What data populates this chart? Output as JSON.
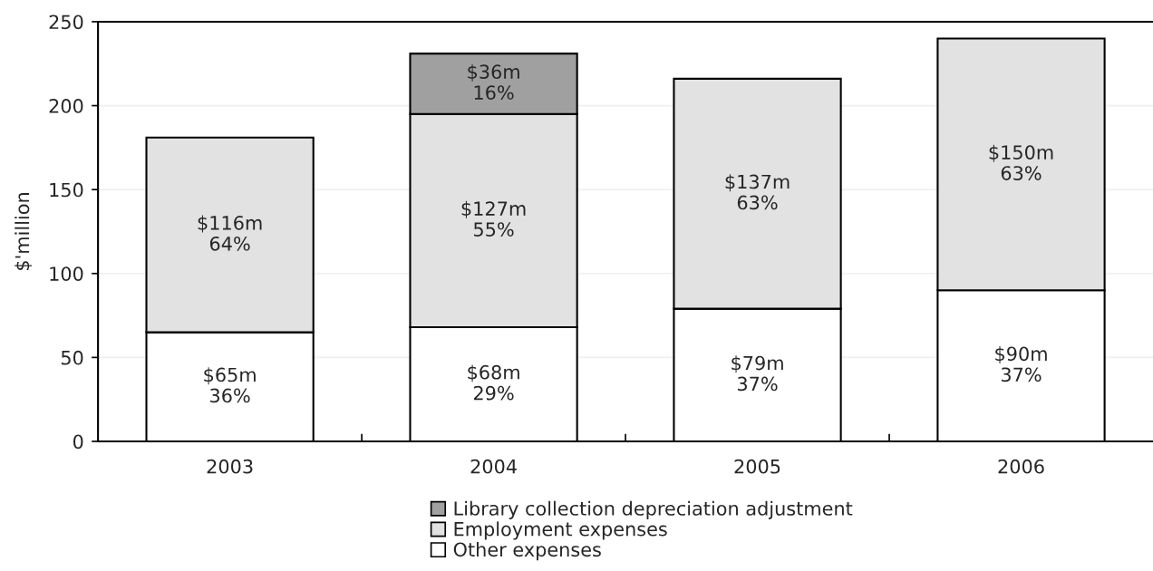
{
  "chart_data": {
    "type": "bar",
    "stacked": true,
    "ylabel": "$'million",
    "categories": [
      "2003",
      "2004",
      "2005",
      "2006"
    ],
    "series": [
      {
        "name": "Other expenses",
        "color": "#ffffff",
        "values": [
          65,
          68,
          79,
          90
        ],
        "value_labels": [
          "$65m",
          "$68m",
          "$79m",
          "$90m"
        ]
      },
      {
        "name": "Employment expenses",
        "color": "#e2e2e2",
        "values": [
          116,
          127,
          137,
          150
        ],
        "value_labels": [
          "$116m",
          "$127m",
          "$137m",
          "$150m"
        ]
      },
      {
        "name": "Library collection depreciation adjustment",
        "color": "#a0a0a0",
        "values": [
          null,
          36,
          null,
          null
        ],
        "value_labels": [
          null,
          "$36m",
          null,
          null
        ]
      }
    ],
    "annotations": [
      "36%",
      "29%",
      "37%",
      "37%",
      "64%",
      "55%",
      "63%",
      "63%",
      "16%"
    ],
    "ylim": [
      0,
      250
    ],
    "yticks": [
      0,
      50,
      100,
      150,
      200,
      250
    ],
    "grid": "y",
    "legend": "bottom"
  }
}
